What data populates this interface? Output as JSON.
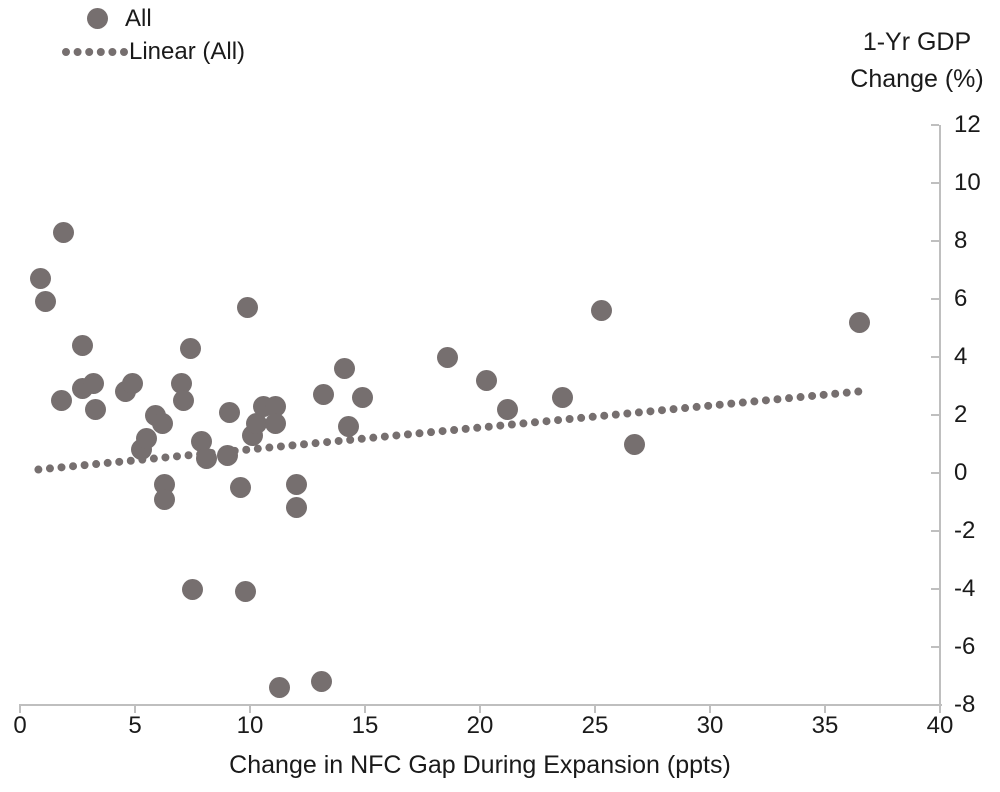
{
  "chart_data": {
    "type": "scatter",
    "xlabel": "Change in NFC Gap During Expansion (ppts)",
    "ylabel": "1-Yr GDP Change (%)",
    "ylabel_lines": [
      "1-Yr GDP",
      "Change (%)"
    ],
    "xlim": [
      0,
      40
    ],
    "ylim": [
      -8,
      12
    ],
    "x_ticks": [
      0,
      5,
      10,
      15,
      20,
      25,
      30,
      35,
      40
    ],
    "y_ticks": [
      12,
      10,
      8,
      6,
      4,
      2,
      0,
      -2,
      -4,
      -6,
      -8
    ],
    "grid": false,
    "legend_position": "top-left",
    "legend": [
      {
        "label": "All",
        "marker": "dot"
      },
      {
        "label": "Linear (All)",
        "marker": "dotted-line"
      }
    ],
    "series": [
      {
        "name": "All",
        "points": [
          [
            0.9,
            6.7
          ],
          [
            1.1,
            5.9
          ],
          [
            1.9,
            8.3
          ],
          [
            1.8,
            2.5
          ],
          [
            2.7,
            4.4
          ],
          [
            2.7,
            2.9
          ],
          [
            3.2,
            3.1
          ],
          [
            3.3,
            2.2
          ],
          [
            4.6,
            2.8
          ],
          [
            4.9,
            3.1
          ],
          [
            5.3,
            0.8
          ],
          [
            5.5,
            1.2
          ],
          [
            5.9,
            2.0
          ],
          [
            6.2,
            1.7
          ],
          [
            6.3,
            -0.4
          ],
          [
            6.3,
            -0.9
          ],
          [
            7.0,
            3.1
          ],
          [
            7.1,
            2.5
          ],
          [
            7.4,
            4.3
          ],
          [
            7.5,
            -4.0
          ],
          [
            7.9,
            1.1
          ],
          [
            8.1,
            0.5
          ],
          [
            9.0,
            0.6
          ],
          [
            9.1,
            2.1
          ],
          [
            9.6,
            -0.5
          ],
          [
            9.8,
            -4.1
          ],
          [
            9.9,
            5.7
          ],
          [
            10.1,
            1.3
          ],
          [
            10.3,
            1.7
          ],
          [
            10.6,
            2.3
          ],
          [
            11.1,
            2.3
          ],
          [
            11.1,
            1.7
          ],
          [
            11.3,
            -7.4
          ],
          [
            12.0,
            -0.4
          ],
          [
            12.0,
            -1.2
          ],
          [
            13.1,
            -7.2
          ],
          [
            13.2,
            2.7
          ],
          [
            14.1,
            3.6
          ],
          [
            14.3,
            1.6
          ],
          [
            14.9,
            2.6
          ],
          [
            18.6,
            4.0
          ],
          [
            20.3,
            3.2
          ],
          [
            21.2,
            2.2
          ],
          [
            23.6,
            2.6
          ],
          [
            25.3,
            5.6
          ],
          [
            26.7,
            1.0
          ],
          [
            36.5,
            5.2
          ]
        ]
      }
    ],
    "trendline": {
      "name": "Linear (All)",
      "x_start": 0.8,
      "y_start": 0.12,
      "x_end": 36.6,
      "y_end": 2.82
    },
    "colors": {
      "point": "#766f6f",
      "trend": "#766f6f",
      "axis": "#bfbfbf",
      "text": "#1a1a1a"
    }
  }
}
